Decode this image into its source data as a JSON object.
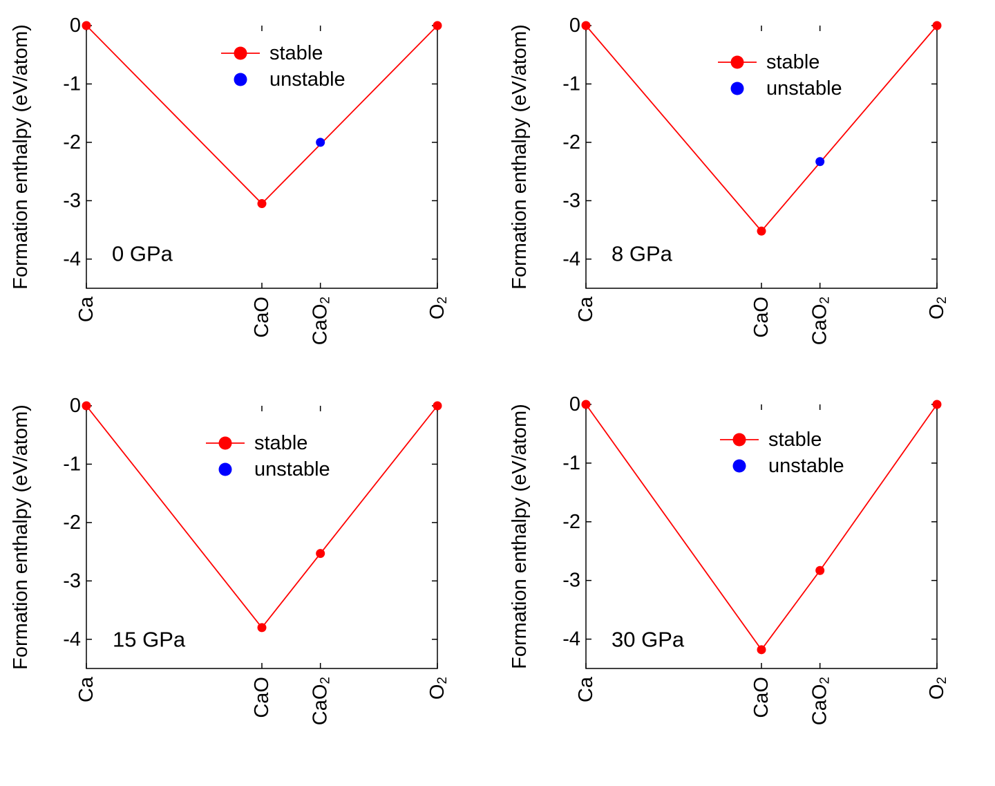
{
  "legend": {
    "stable": "stable",
    "unstable": "unstable"
  },
  "colors": {
    "stable": "#ff0000",
    "unstable": "#0000ff",
    "axis": "#000000"
  },
  "ylabel": "Formation enthalpy (eV/atom)",
  "yticks": [
    0,
    -1,
    -2,
    -3,
    -4
  ],
  "ylim": [
    -4.5,
    0
  ],
  "chart_data": [
    {
      "type": "scatter",
      "title": "",
      "annotation": "0 GPa",
      "xlabel": "",
      "ylabel": "Formation enthalpy (eV/atom)",
      "ylim": [
        -4.5,
        0
      ],
      "x_categories": [
        {
          "base": "Ca",
          "sub": "",
          "x": 0
        },
        {
          "base": "CaO",
          "sub": "",
          "x": 0.5
        },
        {
          "base": "CaO",
          "sub": "2",
          "x": 0.6667
        },
        {
          "base": "O",
          "sub": "2",
          "x": 1
        }
      ],
      "stable_line": [
        [
          0,
          0
        ],
        [
          0.5,
          -3.05
        ],
        [
          1,
          0
        ]
      ],
      "points": [
        {
          "compound": "Ca",
          "x": 0,
          "y": 0,
          "status": "stable"
        },
        {
          "compound": "CaO",
          "x": 0.5,
          "y": -3.05,
          "status": "stable"
        },
        {
          "compound": "CaO2",
          "x": 0.6667,
          "y": -2.0,
          "status": "unstable"
        },
        {
          "compound": "O2",
          "x": 1,
          "y": 0,
          "status": "stable"
        }
      ]
    },
    {
      "type": "scatter",
      "title": "",
      "annotation": "8 GPa",
      "xlabel": "",
      "ylabel": "Formation enthalpy (eV/atom)",
      "ylim": [
        -4.5,
        0
      ],
      "x_categories": [
        {
          "base": "Ca",
          "sub": "",
          "x": 0
        },
        {
          "base": "CaO",
          "sub": "",
          "x": 0.5
        },
        {
          "base": "CaO",
          "sub": "2",
          "x": 0.6667
        },
        {
          "base": "O",
          "sub": "2",
          "x": 1
        }
      ],
      "stable_line": [
        [
          0,
          0
        ],
        [
          0.5,
          -3.52
        ],
        [
          1,
          0
        ]
      ],
      "points": [
        {
          "compound": "Ca",
          "x": 0,
          "y": 0,
          "status": "stable"
        },
        {
          "compound": "CaO",
          "x": 0.5,
          "y": -3.52,
          "status": "stable"
        },
        {
          "compound": "CaO2",
          "x": 0.6667,
          "y": -2.33,
          "status": "unstable"
        },
        {
          "compound": "O2",
          "x": 1,
          "y": 0,
          "status": "stable"
        }
      ]
    },
    {
      "type": "scatter",
      "title": "",
      "annotation": "15 GPa",
      "xlabel": "",
      "ylabel": "Formation enthalpy (eV/atom)",
      "ylim": [
        -4.5,
        0
      ],
      "x_categories": [
        {
          "base": "Ca",
          "sub": "",
          "x": 0
        },
        {
          "base": "CaO",
          "sub": "",
          "x": 0.5
        },
        {
          "base": "CaO",
          "sub": "2",
          "x": 0.6667
        },
        {
          "base": "O",
          "sub": "2",
          "x": 1
        }
      ],
      "stable_line": [
        [
          0,
          0
        ],
        [
          0.5,
          -3.8
        ],
        [
          0.6667,
          -2.53
        ],
        [
          1,
          0
        ]
      ],
      "points": [
        {
          "compound": "Ca",
          "x": 0,
          "y": 0,
          "status": "stable"
        },
        {
          "compound": "CaO",
          "x": 0.5,
          "y": -3.8,
          "status": "stable"
        },
        {
          "compound": "CaO2",
          "x": 0.6667,
          "y": -2.53,
          "status": "stable"
        },
        {
          "compound": "O2",
          "x": 1,
          "y": 0,
          "status": "stable"
        }
      ]
    },
    {
      "type": "scatter",
      "title": "",
      "annotation": "30 GPa",
      "xlabel": "",
      "ylabel": "Formation enthalpy (eV/atom)",
      "ylim": [
        -4.5,
        0
      ],
      "x_categories": [
        {
          "base": "Ca",
          "sub": "",
          "x": 0
        },
        {
          "base": "CaO",
          "sub": "",
          "x": 0.5
        },
        {
          "base": "CaO",
          "sub": "2",
          "x": 0.6667
        },
        {
          "base": "O",
          "sub": "2",
          "x": 1
        }
      ],
      "stable_line": [
        [
          0,
          0
        ],
        [
          0.5,
          -4.18
        ],
        [
          0.6667,
          -2.83
        ],
        [
          1,
          0
        ]
      ],
      "points": [
        {
          "compound": "Ca",
          "x": 0,
          "y": 0,
          "status": "stable"
        },
        {
          "compound": "CaO",
          "x": 0.5,
          "y": -4.18,
          "status": "stable"
        },
        {
          "compound": "CaO2",
          "x": 0.6667,
          "y": -2.83,
          "status": "stable"
        },
        {
          "compound": "O2",
          "x": 1,
          "y": 0,
          "status": "stable"
        }
      ]
    }
  ]
}
